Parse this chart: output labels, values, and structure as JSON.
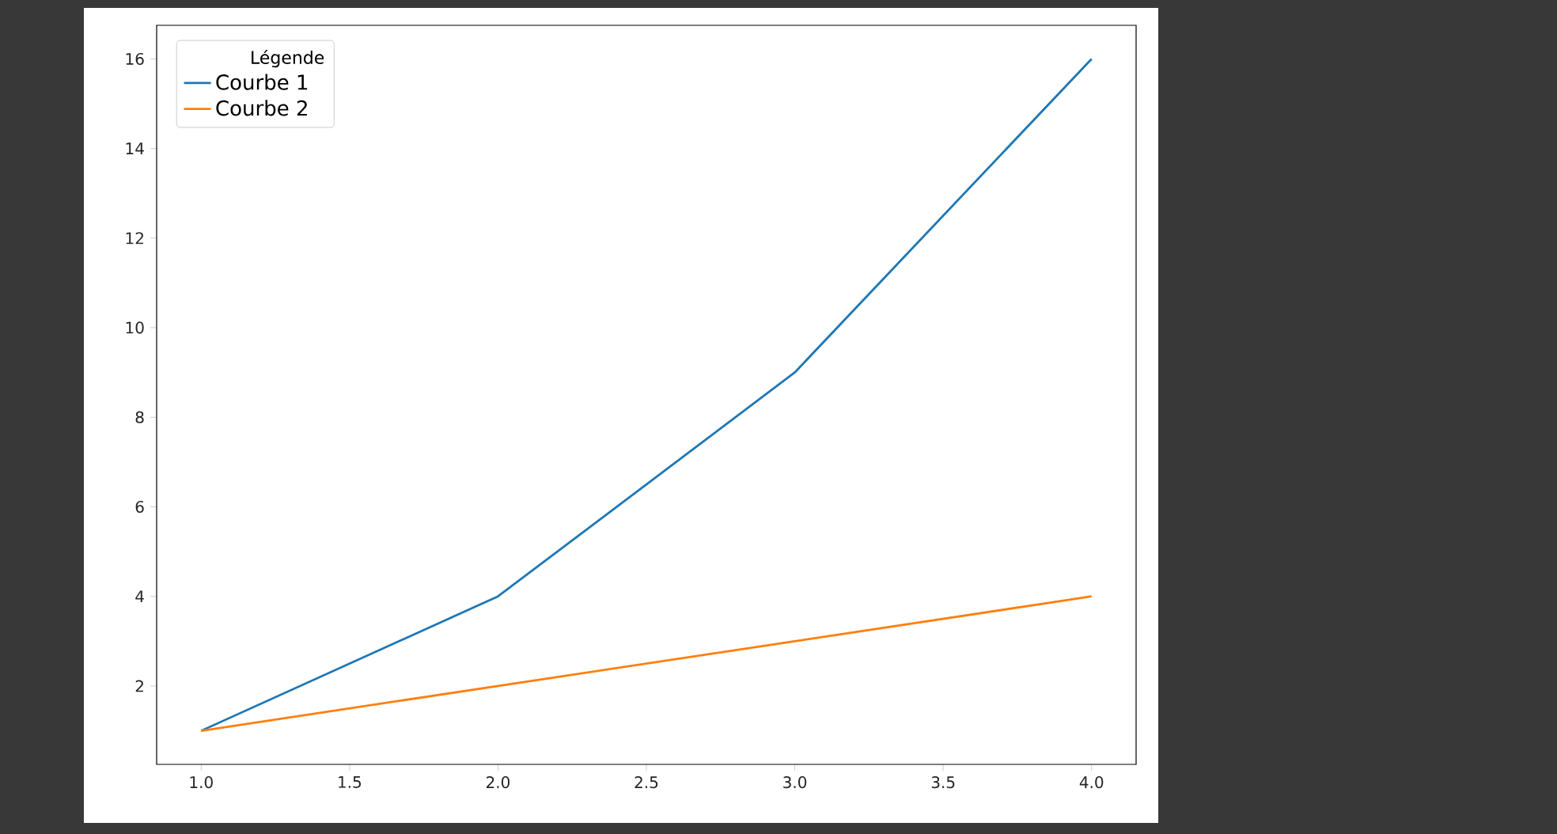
{
  "chart_data": {
    "type": "line",
    "x": [
      1,
      2,
      3,
      4
    ],
    "series": [
      {
        "name": "Courbe 1",
        "color": "#1f77b4",
        "values": [
          1,
          4,
          9,
          16
        ]
      },
      {
        "name": "Courbe 2",
        "color": "#ff7f0e",
        "values": [
          1,
          2,
          3,
          4
        ]
      }
    ],
    "xlim": [
      0.85,
      4.15
    ],
    "ylim": [
      0.25,
      16.75
    ],
    "xticks": [
      {
        "value": 1,
        "label": "1.0"
      },
      {
        "value": 1.5,
        "label": "1.5"
      },
      {
        "value": 2,
        "label": "2.0"
      },
      {
        "value": 2.5,
        "label": "2.5"
      },
      {
        "value": 3,
        "label": "3.0"
      },
      {
        "value": 3.5,
        "label": "3.5"
      },
      {
        "value": 4,
        "label": "4.0"
      }
    ],
    "yticks": [
      2,
      4,
      6,
      8,
      10,
      12,
      14,
      16
    ],
    "legend": "top left",
    "legend_title": "Légende",
    "line_style": "solid"
  }
}
